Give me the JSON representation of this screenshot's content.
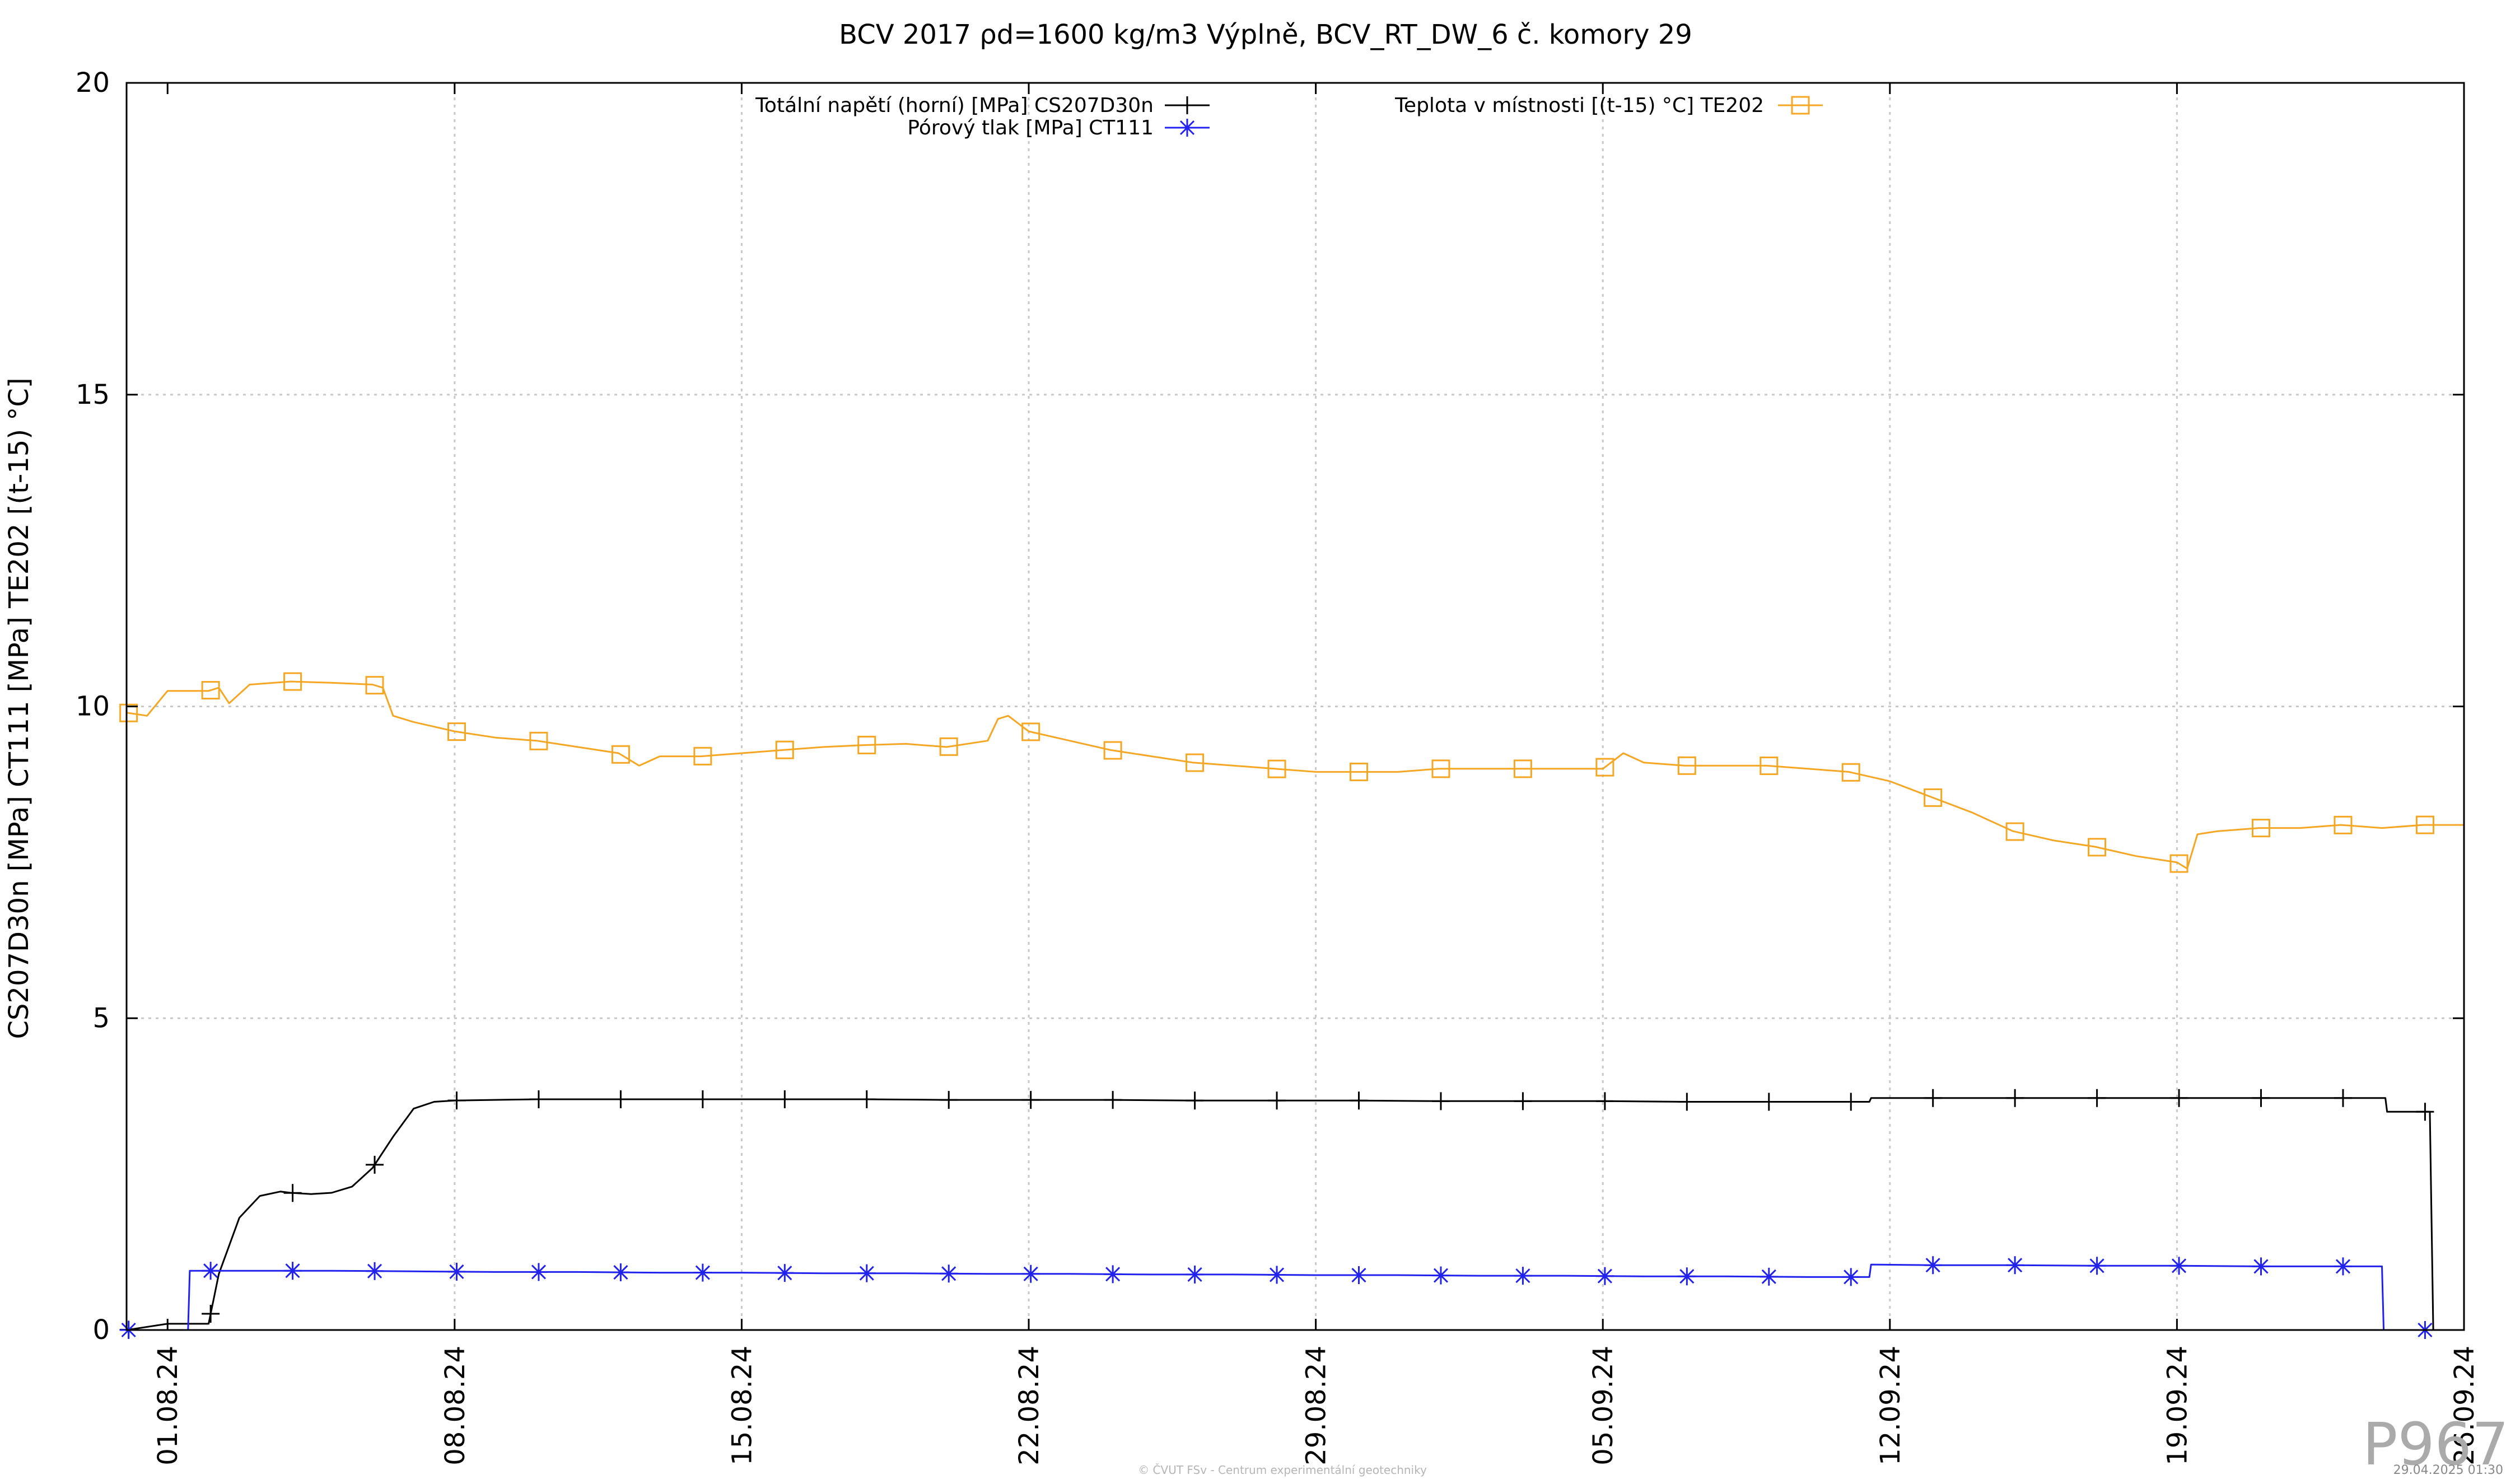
{
  "chart_data": {
    "type": "line",
    "title": "BCV 2017 ρd=1600 kg/m3 Výplně, BCV_RT_DW_6 č. komory 29",
    "ylabel": "CS207D30n [MPa] CT111 [MPa] TE202 [(t-15) °C]",
    "xlabel": "",
    "xlim": [
      "2024-07-31",
      "2024-09-26"
    ],
    "ylim": [
      0,
      20
    ],
    "yticks": [
      0,
      5,
      10,
      15,
      20
    ],
    "xtick_values": [
      "2024-08-01",
      "2024-08-08",
      "2024-08-15",
      "2024-08-22",
      "2024-08-29",
      "2024-09-05",
      "2024-09-12",
      "2024-09-19",
      "2024-09-26"
    ],
    "xtick_labels": [
      "01.08.24",
      "08.08.24",
      "15.08.24",
      "22.08.24",
      "29.08.24",
      "05.09.24",
      "12.09.24",
      "19.09.24",
      "26.09.24"
    ],
    "grid": true,
    "legend_placement": "top",
    "series": [
      {
        "name": "Totální napětí (horní) [MPa] CS207D30n",
        "color": "#000000",
        "marker": "plus",
        "x": [
          "2024-07-31",
          "2024-08-01",
          "2024-08-01 12:00",
          "2024-08-02",
          "2024-08-02 06:00",
          "2024-08-02 18:00",
          "2024-08-03 06:00",
          "2024-08-03 18:00",
          "2024-08-04",
          "2024-08-04 12:00",
          "2024-08-05",
          "2024-08-05 12:00",
          "2024-08-06",
          "2024-08-06 12:00",
          "2024-08-07",
          "2024-08-07 12:00",
          "2024-08-08",
          "2024-08-10",
          "2024-08-12",
          "2024-08-14",
          "2024-08-16",
          "2024-08-18",
          "2024-08-20",
          "2024-08-22",
          "2024-08-24",
          "2024-08-26",
          "2024-08-28",
          "2024-08-30",
          "2024-09-01",
          "2024-09-03",
          "2024-09-05",
          "2024-09-07",
          "2024-09-09",
          "2024-09-11",
          "2024-09-11 12:00",
          "2024-09-11 13:00",
          "2024-09-13",
          "2024-09-15",
          "2024-09-17",
          "2024-09-19",
          "2024-09-21",
          "2024-09-23",
          "2024-09-24",
          "2024-09-24 02:00",
          "2024-09-24 03:00",
          "2024-09-25",
          "2024-09-25 04:00",
          "2024-09-25 06:00",
          "2024-09-26"
        ],
        "y": [
          0,
          0.1,
          0.1,
          0.1,
          0.9,
          1.8,
          2.15,
          2.22,
          2.2,
          2.18,
          2.2,
          2.3,
          2.6,
          3.1,
          3.55,
          3.66,
          3.68,
          3.7,
          3.7,
          3.7,
          3.7,
          3.7,
          3.69,
          3.69,
          3.69,
          3.68,
          3.68,
          3.68,
          3.67,
          3.67,
          3.67,
          3.66,
          3.66,
          3.66,
          3.66,
          3.72,
          3.72,
          3.72,
          3.72,
          3.72,
          3.72,
          3.72,
          3.72,
          3.72,
          3.5,
          3.5,
          3.5,
          0,
          0
        ]
      },
      {
        "name": "Pórový tlak [MPa] CT111",
        "color": "#2222ee",
        "marker": "star",
        "x": [
          "2024-07-31",
          "2024-08-01 12:00",
          "2024-08-01 13:00",
          "2024-08-03",
          "2024-08-05",
          "2024-08-07",
          "2024-08-09",
          "2024-08-11",
          "2024-08-13",
          "2024-08-15",
          "2024-08-17",
          "2024-08-19",
          "2024-08-21",
          "2024-08-23",
          "2024-08-25",
          "2024-08-27",
          "2024-08-29",
          "2024-08-31",
          "2024-09-02",
          "2024-09-04",
          "2024-09-06",
          "2024-09-08",
          "2024-09-10",
          "2024-09-11 12:00",
          "2024-09-11 13:00",
          "2024-09-13",
          "2024-09-15",
          "2024-09-17",
          "2024-09-19",
          "2024-09-21",
          "2024-09-23",
          "2024-09-24",
          "2024-09-24 01:00",
          "2024-09-26"
        ],
        "y": [
          0,
          0,
          0.95,
          0.95,
          0.95,
          0.94,
          0.93,
          0.93,
          0.92,
          0.92,
          0.91,
          0.91,
          0.9,
          0.9,
          0.89,
          0.89,
          0.88,
          0.88,
          0.87,
          0.87,
          0.86,
          0.86,
          0.85,
          0.85,
          1.05,
          1.04,
          1.04,
          1.03,
          1.03,
          1.02,
          1.02,
          1.02,
          0,
          0
        ]
      },
      {
        "name": "Teplota v místnosti [(t-15) °C] TE202",
        "color": "#f5a623",
        "marker": "square",
        "x": [
          "2024-07-31",
          "2024-07-31 12:00",
          "2024-08-01",
          "2024-08-02",
          "2024-08-02 06:00",
          "2024-08-02 12:00",
          "2024-08-03",
          "2024-08-04",
          "2024-08-05",
          "2024-08-06",
          "2024-08-06 06:00",
          "2024-08-06 12:00",
          "2024-08-07",
          "2024-08-08",
          "2024-08-09",
          "2024-08-10",
          "2024-08-11",
          "2024-08-12",
          "2024-08-12 12:00",
          "2024-08-13",
          "2024-08-14",
          "2024-08-15",
          "2024-08-16",
          "2024-08-17",
          "2024-08-18",
          "2024-08-19",
          "2024-08-20",
          "2024-08-21",
          "2024-08-21 06:00",
          "2024-08-21 12:00",
          "2024-08-22",
          "2024-08-23",
          "2024-08-24",
          "2024-08-25",
          "2024-08-26",
          "2024-08-27",
          "2024-08-28",
          "2024-08-29",
          "2024-08-30",
          "2024-08-31",
          "2024-09-01",
          "2024-09-02",
          "2024-09-03",
          "2024-09-04",
          "2024-09-05",
          "2024-09-05 12:00",
          "2024-09-06",
          "2024-09-07",
          "2024-09-08",
          "2024-09-09",
          "2024-09-10",
          "2024-09-11",
          "2024-09-12",
          "2024-09-13",
          "2024-09-14",
          "2024-09-15",
          "2024-09-16",
          "2024-09-17",
          "2024-09-18",
          "2024-09-19",
          "2024-09-19 06:00",
          "2024-09-19 12:00",
          "2024-09-20",
          "2024-09-21",
          "2024-09-22",
          "2024-09-23",
          "2024-09-24",
          "2024-09-25",
          "2024-09-26"
        ],
        "y": [
          9.9,
          9.85,
          10.25,
          10.25,
          10.3,
          10.05,
          10.35,
          10.4,
          10.38,
          10.35,
          10.3,
          9.85,
          9.75,
          9.6,
          9.5,
          9.45,
          9.35,
          9.25,
          9.05,
          9.2,
          9.2,
          9.25,
          9.3,
          9.35,
          9.38,
          9.4,
          9.35,
          9.45,
          9.8,
          9.85,
          9.6,
          9.45,
          9.3,
          9.2,
          9.1,
          9.05,
          9.0,
          8.95,
          8.95,
          8.95,
          9.0,
          9.0,
          9.0,
          9.0,
          9.0,
          9.25,
          9.1,
          9.05,
          9.05,
          9.05,
          9.0,
          8.95,
          8.8,
          8.55,
          8.3,
          8.0,
          7.85,
          7.75,
          7.6,
          7.5,
          7.4,
          7.95,
          8.0,
          8.05,
          8.05,
          8.1,
          8.05,
          8.1,
          8.1
        ]
      }
    ]
  },
  "footer": {
    "watermark": "P967",
    "credit": "© ČVUT FSv - Centrum experimentální geotechniky",
    "timestamp": "29.04.2025 01:30"
  }
}
